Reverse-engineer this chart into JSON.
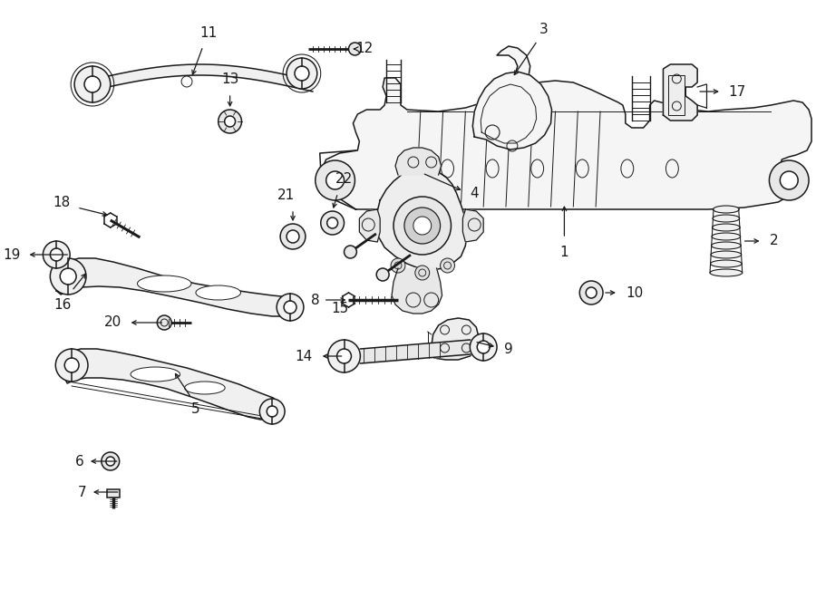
{
  "bg_color": "#ffffff",
  "line_color": "#1a1a1a",
  "label_color": "#000000",
  "lfs": 11,
  "lw": 1.1,
  "components": {
    "part1_label": "1",
    "part2_label": "2",
    "part3_label": "3",
    "part4_label": "4",
    "part5_label": "5",
    "part6_label": "6",
    "part7_label": "7",
    "part8_label": "8",
    "part9_label": "9",
    "part10_label": "10",
    "part11_label": "11",
    "part12_label": "12",
    "part13_label": "13",
    "part14_label": "14",
    "part15_label": "15",
    "part16_label": "16",
    "part17_label": "17",
    "part18_label": "18",
    "part19_label": "19",
    "part20_label": "20",
    "part21_label": "21",
    "part22_label": "22"
  }
}
